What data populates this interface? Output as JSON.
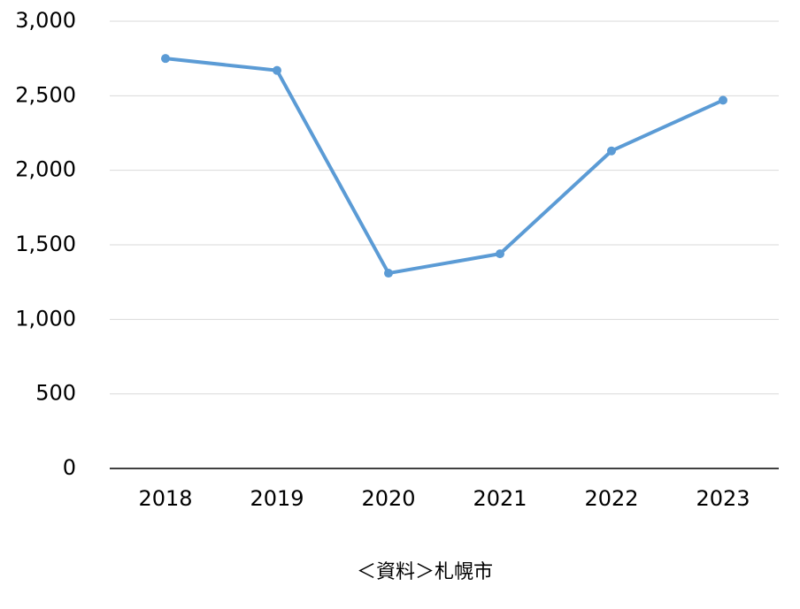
{
  "chart_data": {
    "type": "line",
    "categories": [
      "2018",
      "2019",
      "2020",
      "2021",
      "2022",
      "2023"
    ],
    "series": [
      {
        "name": "value",
        "color": "#5b9bd5",
        "values": [
          2750,
          2670,
          1310,
          1440,
          2130,
          2470
        ]
      }
    ],
    "ylim": [
      0,
      3000
    ],
    "yticks": [
      0,
      500,
      {
        "value": 1000,
        "label": "1,000"
      },
      {
        "value": 1500,
        "label": "1,500"
      },
      {
        "value": 2000,
        "label": "2,000"
      },
      {
        "value": 2500,
        "label": "2,500"
      },
      {
        "value": 3000,
        "label": "3,000"
      }
    ],
    "grid": true,
    "source": "＜資料＞札幌市"
  }
}
